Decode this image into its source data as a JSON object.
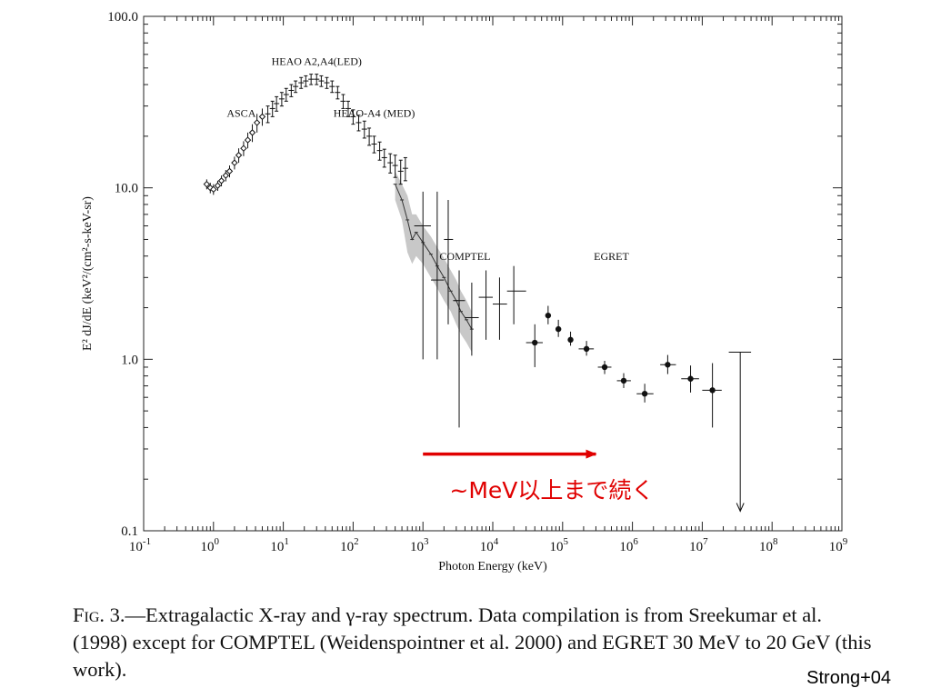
{
  "chart_data": {
    "type": "scatter",
    "xscale": "log",
    "yscale": "log",
    "xlim": [
      0.1,
      1000000000
    ],
    "ylim": [
      0.1,
      100
    ],
    "xlabel": "Photon Energy (keV)",
    "ylabel": "E² dJ/dE (keV²/(cm²-s-keV-sr)",
    "x_tick_labels": [
      {
        "value": 0.1,
        "base": "10",
        "exp": "-1"
      },
      {
        "value": 1,
        "base": "10",
        "exp": "0"
      },
      {
        "value": 10,
        "base": "10",
        "exp": "1"
      },
      {
        "value": 100,
        "base": "10",
        "exp": "2"
      },
      {
        "value": 1000,
        "base": "10",
        "exp": "3"
      },
      {
        "value": 10000,
        "base": "10",
        "exp": "4"
      },
      {
        "value": 100000,
        "base": "10",
        "exp": "5"
      },
      {
        "value": 1000000,
        "base": "10",
        "exp": "6"
      },
      {
        "value": 10000000,
        "base": "10",
        "exp": "7"
      },
      {
        "value": 100000000,
        "base": "10",
        "exp": "8"
      },
      {
        "value": 1000000000,
        "base": "10",
        "exp": "9"
      }
    ],
    "y_tick_labels": [
      {
        "value": 0.1,
        "label": "0.1"
      },
      {
        "value": 1,
        "label": "1.0"
      },
      {
        "value": 10,
        "label": "10.0"
      },
      {
        "value": 100,
        "label": "100.0"
      }
    ],
    "annotations": [
      {
        "text": "HEAO A2,A4(LED)",
        "x": 30,
        "y": 52
      },
      {
        "text": "ASCA",
        "x": 2.5,
        "y": 26
      },
      {
        "text": "HEAO-A4 (MED)",
        "x": 200,
        "y": 26
      },
      {
        "text": "COMPTEL",
        "x": 4000,
        "y": 3.8
      },
      {
        "text": "EGRET",
        "x": 500000,
        "y": 3.8
      }
    ],
    "series": [
      {
        "marker": "diamond-error",
        "points": [
          {
            "x": 0.8,
            "y": 10.5,
            "lo": 9.8,
            "hi": 11.2
          },
          {
            "x": 0.9,
            "y": 10.0,
            "lo": 9.3,
            "hi": 10.7
          },
          {
            "x": 1.0,
            "y": 9.8,
            "lo": 9.1,
            "hi": 10.5
          },
          {
            "x": 1.15,
            "y": 10.3,
            "lo": 9.6,
            "hi": 11.0
          },
          {
            "x": 1.3,
            "y": 11.0,
            "lo": 10.2,
            "hi": 11.8
          },
          {
            "x": 1.5,
            "y": 11.8,
            "lo": 10.9,
            "hi": 12.7
          },
          {
            "x": 1.7,
            "y": 12.5,
            "lo": 11.5,
            "hi": 13.5
          },
          {
            "x": 2.0,
            "y": 14.0,
            "lo": 12.8,
            "hi": 15.2
          },
          {
            "x": 2.3,
            "y": 15.5,
            "lo": 14.0,
            "hi": 17.0
          },
          {
            "x": 2.7,
            "y": 17.0,
            "lo": 15.3,
            "hi": 18.7
          },
          {
            "x": 3.1,
            "y": 19.0,
            "lo": 17.0,
            "hi": 21.0
          },
          {
            "x": 3.6,
            "y": 21.0,
            "lo": 18.5,
            "hi": 23.5
          },
          {
            "x": 4.2,
            "y": 24.0,
            "lo": 21.0,
            "hi": 27.0
          },
          {
            "x": 5.0,
            "y": 26.0,
            "lo": 23.0,
            "hi": 29.0
          }
        ]
      },
      {
        "marker": "plus-error",
        "points": [
          {
            "x": 6,
            "y": 27,
            "lo": 24,
            "hi": 30
          },
          {
            "x": 7,
            "y": 29,
            "lo": 26,
            "hi": 32
          },
          {
            "x": 8,
            "y": 31,
            "lo": 28,
            "hi": 34
          },
          {
            "x": 9.5,
            "y": 33,
            "lo": 30,
            "hi": 36
          },
          {
            "x": 11,
            "y": 35,
            "lo": 32,
            "hi": 38
          },
          {
            "x": 13,
            "y": 37,
            "lo": 34,
            "hi": 40
          },
          {
            "x": 15,
            "y": 39,
            "lo": 36,
            "hi": 42
          },
          {
            "x": 18,
            "y": 41,
            "lo": 38,
            "hi": 44
          },
          {
            "x": 21,
            "y": 42,
            "lo": 39,
            "hi": 45
          },
          {
            "x": 25,
            "y": 43,
            "lo": 40,
            "hi": 46
          },
          {
            "x": 30,
            "y": 43,
            "lo": 40,
            "hi": 46
          },
          {
            "x": 35,
            "y": 42,
            "lo": 39,
            "hi": 45
          },
          {
            "x": 42,
            "y": 41,
            "lo": 38,
            "hi": 44
          },
          {
            "x": 50,
            "y": 39,
            "lo": 36,
            "hi": 42
          },
          {
            "x": 60,
            "y": 36,
            "lo": 33,
            "hi": 39
          },
          {
            "x": 72,
            "y": 32,
            "lo": 29,
            "hi": 35
          },
          {
            "x": 85,
            "y": 29,
            "lo": 26,
            "hi": 32
          },
          {
            "x": 100,
            "y": 26,
            "lo": 23.5,
            "hi": 28.5
          },
          {
            "x": 120,
            "y": 24,
            "lo": 21.5,
            "hi": 26.5
          },
          {
            "x": 145,
            "y": 22,
            "lo": 19.5,
            "hi": 24.5
          },
          {
            "x": 170,
            "y": 20,
            "lo": 17.7,
            "hi": 22.3
          },
          {
            "x": 200,
            "y": 18,
            "lo": 16,
            "hi": 20
          },
          {
            "x": 240,
            "y": 16.5,
            "lo": 14.5,
            "hi": 18.5
          },
          {
            "x": 280,
            "y": 15,
            "lo": 13.2,
            "hi": 16.8
          },
          {
            "x": 340,
            "y": 14,
            "lo": 12.2,
            "hi": 15.8
          },
          {
            "x": 400,
            "y": 13.5,
            "lo": 11.5,
            "hi": 15.5
          },
          {
            "x": 480,
            "y": 12.5,
            "lo": 10.5,
            "hi": 14.5
          },
          {
            "x": 560,
            "y": 13.0,
            "lo": 11.0,
            "hi": 15.0
          }
        ]
      },
      {
        "marker": "line",
        "points": [
          {
            "x": 400,
            "y": 10.5
          },
          {
            "x": 500,
            "y": 8.5
          },
          {
            "x": 600,
            "y": 6.5
          },
          {
            "x": 700,
            "y": 5.0
          },
          {
            "x": 800,
            "y": 5.5
          },
          {
            "x": 1000,
            "y": 4.8
          },
          {
            "x": 1300,
            "y": 4.1
          },
          {
            "x": 1600,
            "y": 3.5
          },
          {
            "x": 2000,
            "y": 3.0
          },
          {
            "x": 2500,
            "y": 2.5
          },
          {
            "x": 3000,
            "y": 2.2
          },
          {
            "x": 3500,
            "y": 1.9
          },
          {
            "x": 4200,
            "y": 1.7
          },
          {
            "x": 5000,
            "y": 1.5
          }
        ],
        "band": [
          {
            "x": 400,
            "lo": 8.5,
            "hi": 12.5
          },
          {
            "x": 500,
            "lo": 6.5,
            "hi": 10.5
          },
          {
            "x": 600,
            "lo": 4.2,
            "hi": 9.0
          },
          {
            "x": 700,
            "lo": 3.6,
            "hi": 7.0
          },
          {
            "x": 800,
            "lo": 4.0,
            "hi": 7.0
          },
          {
            "x": 1000,
            "lo": 3.6,
            "hi": 6.0
          },
          {
            "x": 1300,
            "lo": 3.0,
            "hi": 5.2
          },
          {
            "x": 1600,
            "lo": 2.6,
            "hi": 4.5
          },
          {
            "x": 2000,
            "lo": 2.2,
            "hi": 3.9
          },
          {
            "x": 2500,
            "lo": 1.9,
            "hi": 3.3
          },
          {
            "x": 3000,
            "lo": 1.6,
            "hi": 2.9
          },
          {
            "x": 3500,
            "lo": 1.4,
            "hi": 2.5
          },
          {
            "x": 4200,
            "lo": 1.25,
            "hi": 2.2
          },
          {
            "x": 5000,
            "lo": 1.1,
            "hi": 1.9
          }
        ]
      },
      {
        "name": "COMPTEL",
        "marker": "cross-error",
        "points": [
          {
            "x": 1000,
            "y": 6.0,
            "xlo": 750,
            "xhi": 1300,
            "lo": 1.0,
            "hi": 9.5
          },
          {
            "x": 1600,
            "y": 2.9,
            "xlo": 1300,
            "xhi": 2000,
            "lo": 1.0,
            "hi": 9.5
          },
          {
            "x": 2300,
            "y": 5.0,
            "xlo": 2000,
            "xhi": 2700,
            "lo": 1.6,
            "hi": 8.5
          },
          {
            "x": 3300,
            "y": 2.2,
            "xlo": 2700,
            "xhi": 4000,
            "lo": 0.4,
            "hi": 3.3
          },
          {
            "x": 5000,
            "y": 1.75,
            "xlo": 4000,
            "xhi": 6300,
            "lo": 1.05,
            "hi": 2.8
          },
          {
            "x": 8000,
            "y": 2.3,
            "xlo": 6300,
            "xhi": 10000,
            "lo": 1.3,
            "hi": 3.3
          },
          {
            "x": 12500,
            "y": 2.1,
            "xlo": 10000,
            "xhi": 16000,
            "lo": 1.3,
            "hi": 3.0
          },
          {
            "x": 20000,
            "y": 2.5,
            "xlo": 16000,
            "xhi": 30000,
            "lo": 1.6,
            "hi": 3.5
          }
        ]
      },
      {
        "name": "EGRET",
        "marker": "dot-error",
        "points": [
          {
            "x": 40000,
            "y": 1.25,
            "xlo": 30000,
            "xhi": 52000,
            "lo": 0.9,
            "hi": 1.6
          },
          {
            "x": 62000,
            "y": 1.8,
            "lo": 1.6,
            "hi": 2.05
          },
          {
            "x": 87000,
            "y": 1.5,
            "lo": 1.35,
            "hi": 1.7
          },
          {
            "x": 130000,
            "y": 1.3,
            "lo": 1.2,
            "hi": 1.45
          },
          {
            "x": 220000,
            "y": 1.15,
            "xlo": 170000,
            "xhi": 280000,
            "lo": 1.05,
            "hi": 1.28
          },
          {
            "x": 400000,
            "y": 0.9,
            "xlo": 320000,
            "xhi": 500000,
            "lo": 0.82,
            "hi": 0.98
          },
          {
            "x": 750000,
            "y": 0.75,
            "xlo": 600000,
            "xhi": 950000,
            "lo": 0.68,
            "hi": 0.83
          },
          {
            "x": 1500000,
            "y": 0.63,
            "xlo": 1150000,
            "xhi": 2000000,
            "lo": 0.56,
            "hi": 0.72
          },
          {
            "x": 3200000,
            "y": 0.93,
            "xlo": 2500000,
            "xhi": 4200000,
            "lo": 0.82,
            "hi": 1.06
          },
          {
            "x": 6800000,
            "y": 0.77,
            "xlo": 5000000,
            "xhi": 9000000,
            "lo": 0.64,
            "hi": 0.92
          },
          {
            "x": 14000000,
            "y": 0.66,
            "xlo": 10000000,
            "xhi": 19000000,
            "lo": 0.4,
            "hi": 0.95
          }
        ]
      },
      {
        "marker": "upper-limit",
        "points": [
          {
            "x": 35000000,
            "y": 1.1,
            "xlo": 24000000,
            "xhi": 50000000,
            "lo": 0.13
          }
        ]
      }
    ],
    "highlight_arrow": {
      "x_start": 1000,
      "x_end": 300000,
      "y": 0.28,
      "color": "#e00000"
    },
    "highlight_text": {
      "text": "~MeV以上まで続く",
      "x": 70000,
      "y": 0.155,
      "color": "#e00000"
    }
  },
  "caption": {
    "figure_label": "Fig. 3.",
    "text": "—Extragalactic X-ray and γ-ray spectrum. Data compilation is from Sreekumar et al. (1998) except for COMPTEL (Weidenspointner et al. 2000) and EGRET 30 MeV to 20 GeV (this work)."
  },
  "credit": "Strong+04"
}
